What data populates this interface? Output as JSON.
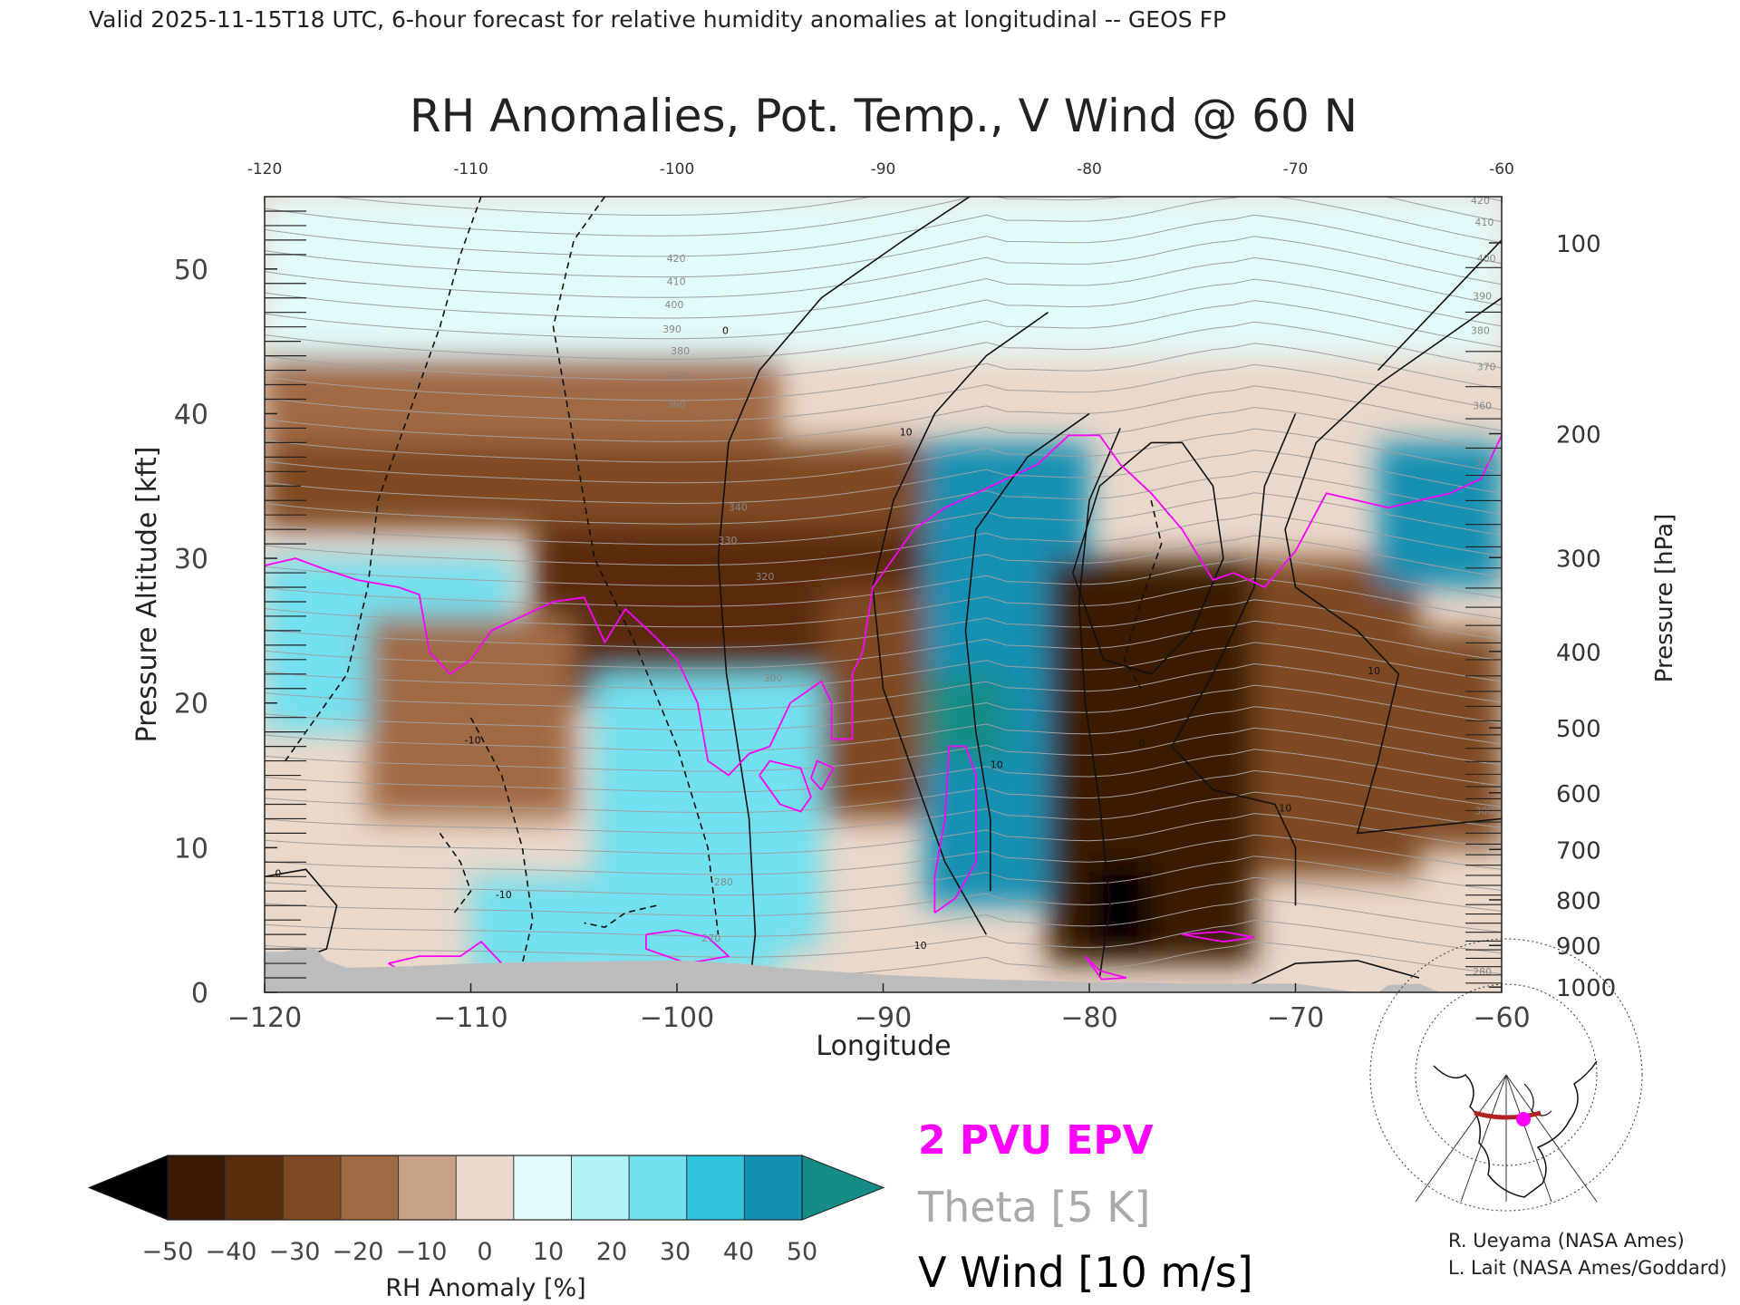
{
  "header": {
    "valid_line": "Valid 2025-11-15T18 UTC, 6-hour forecast for relative humidity anomalies at longitudinal -- GEOS FP"
  },
  "chart_data": {
    "type": "heatmap",
    "title": "RH Anomalies, Pot. Temp., V Wind @ 60 N",
    "xlabel": "Longitude",
    "ylabel_left": "Pressure Altitude [kft]",
    "ylabel_right": "Pressure [hPa]",
    "xlim": [
      -120,
      -60
    ],
    "ylim_kft": [
      0,
      55
    ],
    "x_ticks": [
      -120,
      -110,
      -100,
      -90,
      -80,
      -70,
      -60
    ],
    "x_tick_labels": [
      "−120",
      "−110",
      "−100",
      "−90",
      "−80",
      "−70",
      "−60"
    ],
    "x_top_tick_labels": [
      "-120",
      "-110",
      "-100",
      "-90",
      "-80",
      "-70",
      "-60"
    ],
    "y_ticks_kft": [
      0,
      10,
      20,
      30,
      40,
      50
    ],
    "pressure_ticks": [
      {
        "hpa": 100,
        "label": "100"
      },
      {
        "hpa": 200,
        "label": "200"
      },
      {
        "hpa": 300,
        "label": "300"
      },
      {
        "hpa": 400,
        "label": "400"
      },
      {
        "hpa": 500,
        "label": "500"
      },
      {
        "hpa": 600,
        "label": "600"
      },
      {
        "hpa": 700,
        "label": "700"
      },
      {
        "hpa": 800,
        "label": "800"
      },
      {
        "hpa": 900,
        "label": "900"
      },
      {
        "hpa": 1000,
        "label": "1000"
      }
    ],
    "theta_labels": [
      "420",
      "410",
      "400",
      "390",
      "380",
      "370",
      "360",
      "340",
      "330",
      "320",
      "300",
      "280",
      "270"
    ],
    "wind_labels": [
      "0",
      "10",
      "-10"
    ],
    "rh_anomaly_field": {
      "regions": [
        {
          "lon": [
            -120,
            -60
          ],
          "kft": [
            44,
            55
          ],
          "value": 2
        },
        {
          "lon": [
            -120,
            -95
          ],
          "kft": [
            38,
            44
          ],
          "value": -12
        },
        {
          "lon": [
            -120,
            -88
          ],
          "kft": [
            32,
            38
          ],
          "value": -30
        },
        {
          "lon": [
            -107,
            -88
          ],
          "kft": [
            20,
            32
          ],
          "value": -40
        },
        {
          "lon": [
            -120,
            -108
          ],
          "kft": [
            18,
            30
          ],
          "value": 20
        },
        {
          "lon": [
            -115,
            -105
          ],
          "kft": [
            12,
            26
          ],
          "value": -12
        },
        {
          "lon": [
            -104,
            -93
          ],
          "kft": [
            3,
            22
          ],
          "value": 25
        },
        {
          "lon": [
            -93,
            -88
          ],
          "kft": [
            12,
            28
          ],
          "value": -22
        },
        {
          "lon": [
            -88,
            -80
          ],
          "kft": [
            6,
            38
          ],
          "value": 42
        },
        {
          "lon": [
            -88,
            -84
          ],
          "kft": [
            16,
            22
          ],
          "value": 52
        },
        {
          "lon": [
            -82,
            -72
          ],
          "kft": [
            2,
            30
          ],
          "value": -42
        },
        {
          "lon": [
            -80,
            -77
          ],
          "kft": [
            3,
            9
          ],
          "value": -52
        },
        {
          "lon": [
            -72,
            -64
          ],
          "kft": [
            8,
            30
          ],
          "value": -22
        },
        {
          "lon": [
            -66,
            -60
          ],
          "kft": [
            28,
            38
          ],
          "value": 45
        },
        {
          "lon": [
            -64,
            -60
          ],
          "kft": [
            10,
            25
          ],
          "value": -30
        },
        {
          "lon": [
            -110,
            -95
          ],
          "kft": [
            1,
            8
          ],
          "value": 22
        }
      ]
    },
    "colorbar": {
      "label": "RH Anomaly [%]",
      "tick_labels": [
        "−50",
        "−40",
        "−30",
        "−20",
        "−10",
        "0",
        "10",
        "20",
        "30",
        "40",
        "50"
      ],
      "colors": [
        "#3a1a05",
        "#5a2c0e",
        "#7e4a23",
        "#a06a45",
        "#c8a188",
        "#ead8cb",
        "#e2fbfb",
        "#b0f1f6",
        "#72e0ef",
        "#30c5df",
        "#1390b3"
      ],
      "under_color": "#000000",
      "over_color": "#158c86"
    },
    "legend": {
      "epv": {
        "label": "2 PVU EPV",
        "color": "#ff00ff"
      },
      "theta": {
        "label": "Theta [5 K]",
        "color": "#a9a9a9"
      },
      "vwind": {
        "label": "V Wind [10 m/s]",
        "color": "#000000"
      }
    },
    "terrain_color": "#bcbcbc"
  },
  "credits": {
    "line1": "R. Ueyama (NASA Ames)",
    "line2": "L. Lait (NASA Ames/Goddard)"
  }
}
